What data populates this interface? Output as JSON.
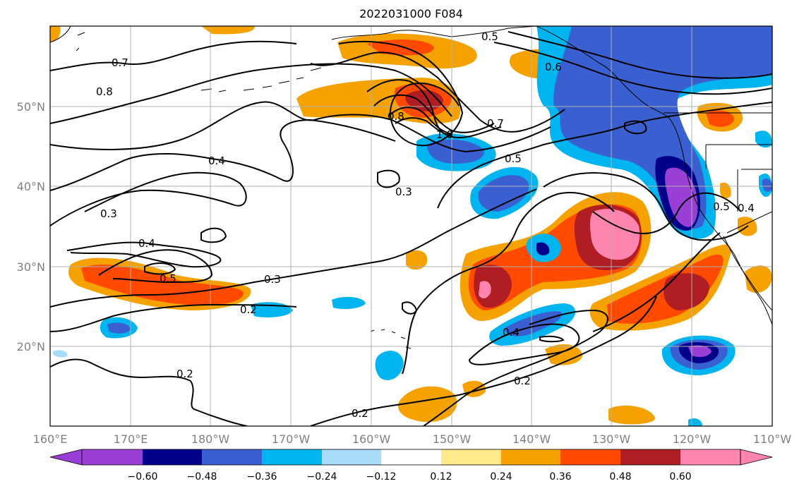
{
  "title": "2022031000 F084",
  "axes": {
    "lon_ticks": [
      "160°E",
      "170°E",
      "180°W",
      "170°W",
      "160°W",
      "150°W",
      "140°W",
      "130°W",
      "120°W",
      "110°W"
    ],
    "lat_ticks": [
      "50°N",
      "40°N",
      "30°N",
      "20°N"
    ]
  },
  "colorbar": {
    "labels": [
      "−0.60",
      "−0.48",
      "−0.36",
      "−0.24",
      "−0.12",
      "0.12",
      "0.24",
      "0.36",
      "0.48",
      "0.60"
    ],
    "colors": [
      "#9a3fd6",
      "#00008b",
      "#3a5fd0",
      "#00b4f0",
      "#a8dcf8",
      "#ffffff",
      "#ffe98a",
      "#f5a200",
      "#ff4a00",
      "#b01e23",
      "#ff85b0"
    ]
  },
  "contour_labels": [
    "0.5",
    "0.6",
    "0.7",
    "0.8",
    "0.8",
    "1.0",
    "0.7",
    "0.5",
    "0.4",
    "0.3",
    "0.3",
    "0.4",
    "0.5",
    "0.3",
    "0.2",
    "0.4",
    "0.2",
    "0.2",
    "0.2",
    "0.5",
    "0.4"
  ]
}
